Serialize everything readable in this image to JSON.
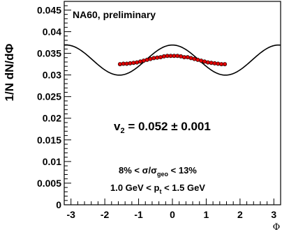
{
  "chart_data": {
    "type": "scatter",
    "title": "NA60, preliminary",
    "xlabel": "Φ",
    "ylabel": "1/N dN/dΦ",
    "xlim": [
      -3.2,
      3.2
    ],
    "ylim": [
      0,
      0.047
    ],
    "x_ticks": [
      -3,
      -2,
      -1,
      0,
      1,
      2,
      3
    ],
    "x_tick_labels": [
      "-3",
      "-2",
      "-1",
      "0",
      "1",
      "2",
      "3"
    ],
    "y_ticks": [
      0,
      0.005,
      0.01,
      0.015,
      0.02,
      0.025,
      0.03,
      0.035,
      0.04,
      0.045
    ],
    "y_tick_labels": [
      "0",
      "0.005",
      "0.01",
      "0.015",
      "0.02",
      "0.025",
      "0.03",
      "0.035",
      "0.04",
      "0.045"
    ],
    "grid": false,
    "annotations": {
      "v2_symbol": "v",
      "v2_subscript": "2",
      "v2_value": " = 0.052 ± 0.001",
      "centrality_prefix": "8% < σ/σ",
      "centrality_subscript": "geo",
      "centrality_suffix": " < 13%",
      "pt_prefix": "1.0 GeV < p",
      "pt_subscript": "t",
      "pt_suffix": " < 1.5 GeV"
    },
    "fit": {
      "function": "A·(1 + 2·v2·cos(2Φ))",
      "A": 0.03344,
      "v2": 0.052,
      "color": "#000000"
    },
    "series": [
      {
        "marker_color": "#e00000",
        "edge_color": "#000000",
        "x": [
          -1.55,
          -1.45,
          -1.35,
          -1.25,
          -1.15,
          -1.05,
          -0.95,
          -0.85,
          -0.75,
          -0.65,
          -0.55,
          -0.45,
          -0.35,
          -0.25,
          -0.15,
          -0.05,
          0.05,
          0.15,
          0.25,
          0.35,
          0.45,
          0.55,
          0.65,
          0.75,
          0.85,
          0.95,
          1.05,
          1.15,
          1.25,
          1.35,
          1.45,
          1.55
        ],
        "values": [
          0.0325,
          0.0326,
          0.0326,
          0.0327,
          0.0328,
          0.0329,
          0.0331,
          0.0333,
          0.0335,
          0.0337,
          0.0339,
          0.034,
          0.0341,
          0.0343,
          0.0344,
          0.0344,
          0.0344,
          0.0344,
          0.0343,
          0.0341,
          0.0341,
          0.0339,
          0.0337,
          0.0335,
          0.0333,
          0.0331,
          0.0329,
          0.0328,
          0.0327,
          0.0326,
          0.0325,
          0.0325
        ]
      }
    ]
  }
}
